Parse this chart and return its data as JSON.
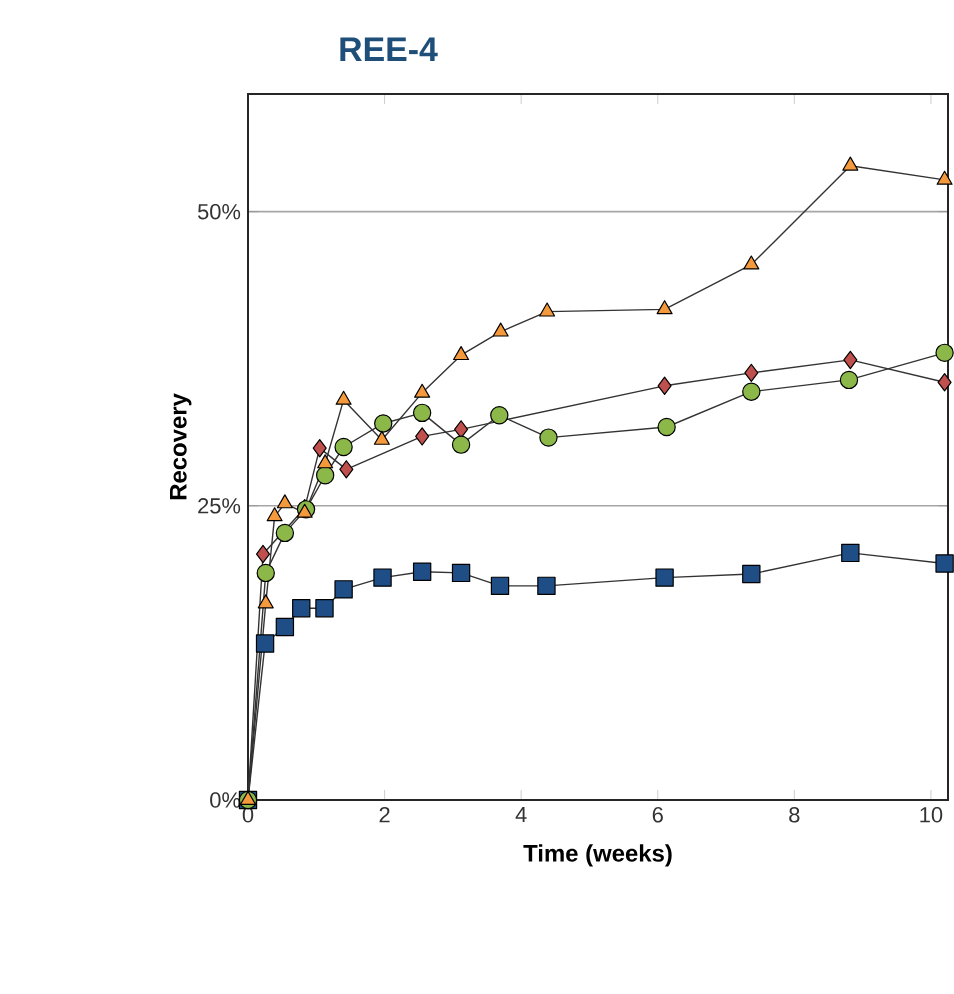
{
  "chart_data": {
    "type": "line",
    "title": "REE-4",
    "xlabel": "Time (weeks)",
    "ylabel": "Recovery",
    "xlim": [
      0,
      10.25
    ],
    "ylim": [
      0,
      60
    ],
    "xticks": [
      0,
      2,
      4,
      6,
      8,
      10
    ],
    "yticks": [
      {
        "value": 0,
        "label": "0%"
      },
      {
        "value": 25,
        "label": "25%"
      },
      {
        "value": 50,
        "label": "50%"
      }
    ],
    "grid": "y",
    "line_style": "solid",
    "series": [
      {
        "color": "#1f4e87",
        "marker": "square",
        "x": [
          0,
          0.25,
          0.54,
          0.78,
          1.12,
          1.4,
          1.97,
          2.55,
          3.12,
          3.69,
          4.37,
          6.1,
          7.37,
          8.82,
          10.2
        ],
        "values": [
          0,
          13.3,
          14.7,
          16.3,
          16.3,
          17.9,
          18.9,
          19.4,
          19.3,
          18.2,
          18.2,
          18.9,
          19.2,
          21.0,
          20.1
        ]
      },
      {
        "color": "#c0504d",
        "marker": "diamond",
        "x": [
          0,
          0.22,
          0.39,
          0.83,
          1.05,
          1.44,
          2.55,
          3.12,
          6.1,
          7.37,
          8.82,
          10.2
        ],
        "values": [
          0,
          20.9,
          null,
          24.8,
          29.9,
          28.1,
          30.9,
          31.5,
          35.2,
          36.3,
          37.4,
          35.5
        ]
      },
      {
        "color": "#8cb84a",
        "marker": "circle",
        "x": [
          0,
          0.26,
          0.54,
          0.85,
          1.13,
          1.4,
          1.98,
          2.55,
          3.12,
          3.68,
          4.4,
          6.13,
          7.37,
          8.8,
          10.2
        ],
        "values": [
          0,
          19.3,
          22.7,
          24.7,
          27.6,
          30.0,
          32.0,
          32.9,
          30.2,
          32.7,
          30.8,
          31.7,
          34.7,
          35.7,
          38.0
        ]
      },
      {
        "color": "#f59a3c",
        "marker": "triangle",
        "x": [
          0,
          0.26,
          0.39,
          0.54,
          0.83,
          1.13,
          1.4,
          1.96,
          2.55,
          3.12,
          3.7,
          4.38,
          6.1,
          7.37,
          8.82,
          10.2
        ],
        "values": [
          0,
          16.7,
          24.1,
          25.2,
          24.4,
          28.6,
          34.0,
          30.6,
          34.6,
          37.8,
          39.8,
          41.5,
          41.7,
          45.5,
          53.9,
          52.7
        ]
      }
    ]
  }
}
